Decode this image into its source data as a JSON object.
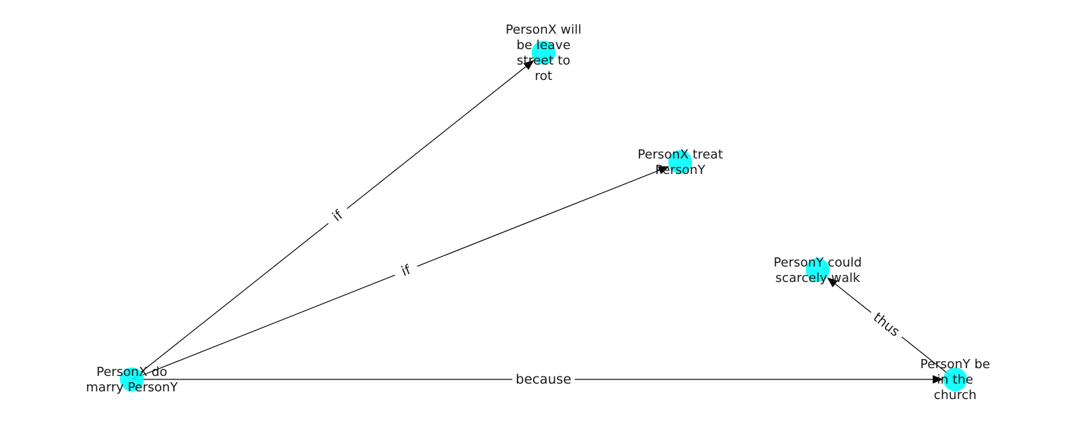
{
  "diagram": {
    "type": "directed-graph",
    "node_color": "#00ffff",
    "edge_color": "#000000",
    "nodes": [
      {
        "id": "n1",
        "label_lines": [
          "PersonX will",
          "be leave",
          "street to",
          "rot"
        ]
      },
      {
        "id": "n2",
        "label_lines": [
          "PersonX treat",
          "PersonY"
        ]
      },
      {
        "id": "n3",
        "label_lines": [
          "PersonY could",
          "scarcely walk"
        ]
      },
      {
        "id": "n4",
        "label_lines": [
          "PersonX do",
          "marry PersonY"
        ]
      },
      {
        "id": "n5",
        "label_lines": [
          "PersonY be",
          "in the",
          "church"
        ]
      }
    ],
    "edges": [
      {
        "id": "e1",
        "from": "n4",
        "to": "n1",
        "label": "if"
      },
      {
        "id": "e2",
        "from": "n4",
        "to": "n2",
        "label": "if"
      },
      {
        "id": "e3",
        "from": "n4",
        "to": "n5",
        "label": "because"
      },
      {
        "id": "e4",
        "from": "n5",
        "to": "n3",
        "label": "thus"
      }
    ]
  }
}
